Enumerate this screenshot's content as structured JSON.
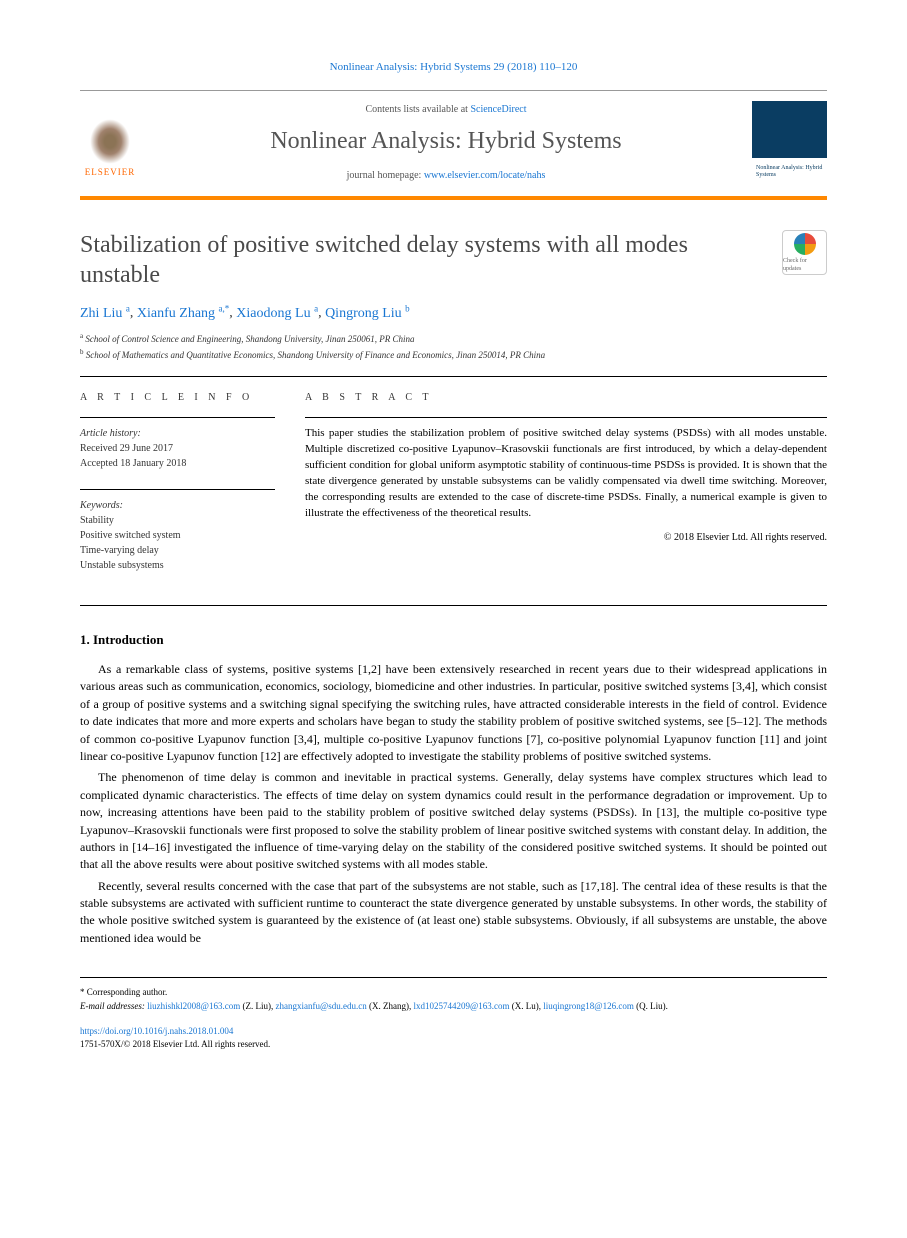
{
  "citation": "Nonlinear Analysis: Hybrid Systems 29 (2018) 110–120",
  "header": {
    "contents_prefix": "Contents lists available at ",
    "contents_link": "ScienceDirect",
    "journal": "Nonlinear Analysis: Hybrid Systems",
    "homepage_prefix": "journal homepage: ",
    "homepage_link": "www.elsevier.com/locate/nahs",
    "publisher": "ELSEVIER",
    "cover_label": "Nonlinear Analysis: Hybrid Systems"
  },
  "article": {
    "title": "Stabilization of positive switched delay systems with all modes unstable",
    "check_label": "Check for updates"
  },
  "authors": [
    {
      "name": "Zhi Liu",
      "aff": "a"
    },
    {
      "name": "Xianfu Zhang",
      "aff": "a,*"
    },
    {
      "name": "Xiaodong Lu",
      "aff": "a"
    },
    {
      "name": "Qingrong Liu",
      "aff": "b"
    }
  ],
  "affiliations": [
    {
      "sup": "a",
      "text": "School of Control Science and Engineering, Shandong University, Jinan 250061, PR China"
    },
    {
      "sup": "b",
      "text": "School of Mathematics and Quantitative Economics, Shandong University of Finance and Economics, Jinan 250014, PR China"
    }
  ],
  "info": {
    "header": "A R T I C L E   I N F O",
    "history_label": "Article history:",
    "received": "Received 29 June 2017",
    "accepted": "Accepted 18 January 2018",
    "keywords_label": "Keywords:",
    "keywords": [
      "Stability",
      "Positive switched system",
      "Time-varying delay",
      "Unstable subsystems"
    ]
  },
  "abstract": {
    "header": "A B S T R A C T",
    "text": "This paper studies the stabilization problem of positive switched delay systems (PSDSs) with all modes unstable. Multiple discretized co-positive Lyapunov–Krasovskii functionals are first introduced, by which a delay-dependent sufficient condition for global uniform asymptotic stability of continuous-time PSDSs is provided. It is shown that the state divergence generated by unstable subsystems can be validly compensated via dwell time switching. Moreover, the corresponding results are extended to the case of discrete-time PSDSs. Finally, a numerical example is given to illustrate the effectiveness of the theoretical results.",
    "copyright": "© 2018 Elsevier Ltd. All rights reserved."
  },
  "introduction": {
    "header": "1. Introduction",
    "paragraphs": [
      "As a remarkable class of systems, positive systems [1,2] have been extensively researched in recent years due to their widespread applications in various areas such as communication, economics, sociology, biomedicine and other industries. In particular, positive switched systems [3,4], which consist of a group of positive systems and a switching signal specifying the switching rules, have attracted considerable interests in the field of control. Evidence to date indicates that more and more experts and scholars have began to study the stability problem of positive switched systems, see [5–12]. The methods of common co-positive Lyapunov function [3,4], multiple co-positive Lyapunov functions [7], co-positive polynomial Lyapunov function [11] and joint linear co-positive Lyapunov function [12] are effectively adopted to investigate the stability problems of positive switched systems.",
      "The phenomenon of time delay is common and inevitable in practical systems. Generally, delay systems have complex structures which lead to complicated dynamic characteristics. The effects of time delay on system dynamics could result in the performance degradation or improvement. Up to now, increasing attentions have been paid to the stability problem of positive switched delay systems (PSDSs). In [13], the multiple co-positive type Lyapunov–Krasovskii functionals were first proposed to solve the stability problem of linear positive switched systems with constant delay. In addition, the authors in [14–16] investigated the influence of time-varying delay on the stability of the considered positive switched systems. It should be pointed out that all the above results were about positive switched systems with all modes stable.",
      "Recently, several results concerned with the case that part of the subsystems are not stable, such as [17,18]. The central idea of these results is that the stable subsystems are activated with sufficient runtime to counteract the state divergence generated by unstable subsystems. In other words, the stability of the whole positive switched system is guaranteed by the existence of (at least one) stable subsystems. Obviously, if all subsystems are unstable, the above mentioned idea would be"
    ]
  },
  "footnotes": {
    "corresponding": "Corresponding author.",
    "email_label": "E-mail addresses:",
    "emails": [
      {
        "addr": "liuzhishkl2008@163.com",
        "who": "(Z. Liu)"
      },
      {
        "addr": "zhangxianfu@sdu.edu.cn",
        "who": "(X. Zhang)"
      },
      {
        "addr": "lxd1025744209@163.com",
        "who": "(X. Lu)"
      },
      {
        "addr": "liuqingrong18@126.com",
        "who": "(Q. Liu)"
      }
    ]
  },
  "doi": {
    "link": "https://doi.org/10.1016/j.nahs.2018.01.004",
    "issn": "1751-570X/© 2018 Elsevier Ltd. All rights reserved."
  },
  "colors": {
    "link": "#1976d2",
    "accent": "#ff8800",
    "title": "#4a4a4a",
    "publisher": "#ff6600"
  }
}
